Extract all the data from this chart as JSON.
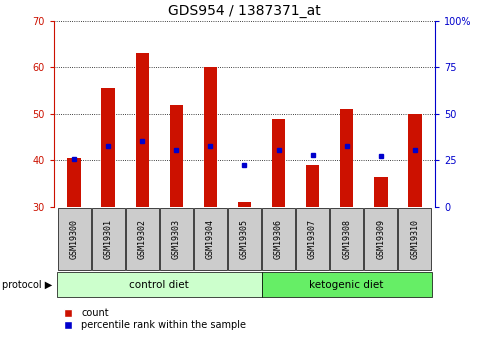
{
  "title": "GDS954 / 1387371_at",
  "samples": [
    "GSM19300",
    "GSM19301",
    "GSM19302",
    "GSM19303",
    "GSM19304",
    "GSM19305",
    "GSM19306",
    "GSM19307",
    "GSM19308",
    "GSM19309",
    "GSM19310"
  ],
  "bar_values": [
    40.5,
    55.5,
    63.0,
    52.0,
    60.0,
    31.0,
    49.0,
    39.0,
    51.0,
    36.5,
    50.0
  ],
  "bar_bottom": 30,
  "blue_values": [
    40.3,
    43.0,
    44.2,
    42.2,
    43.2,
    39.0,
    42.2,
    41.2,
    43.2,
    41.0,
    42.2
  ],
  "ylim": [
    30,
    70
  ],
  "yticks": [
    30,
    40,
    50,
    60,
    70
  ],
  "bar_color": "#cc1100",
  "blue_color": "#0000cc",
  "bg_color": "#ffffff",
  "grid_color": "#000000",
  "control_label": "control diet",
  "ketogenic_label": "ketogenic diet",
  "protocol_label": "protocol",
  "legend_count": "count",
  "legend_pct": "percentile rank within the sample",
  "control_bg": "#ccffcc",
  "ketogenic_bg": "#66ee66",
  "tick_bg": "#cccccc",
  "title_fontsize": 10,
  "tick_fontsize": 7,
  "label_fontsize": 7.5
}
